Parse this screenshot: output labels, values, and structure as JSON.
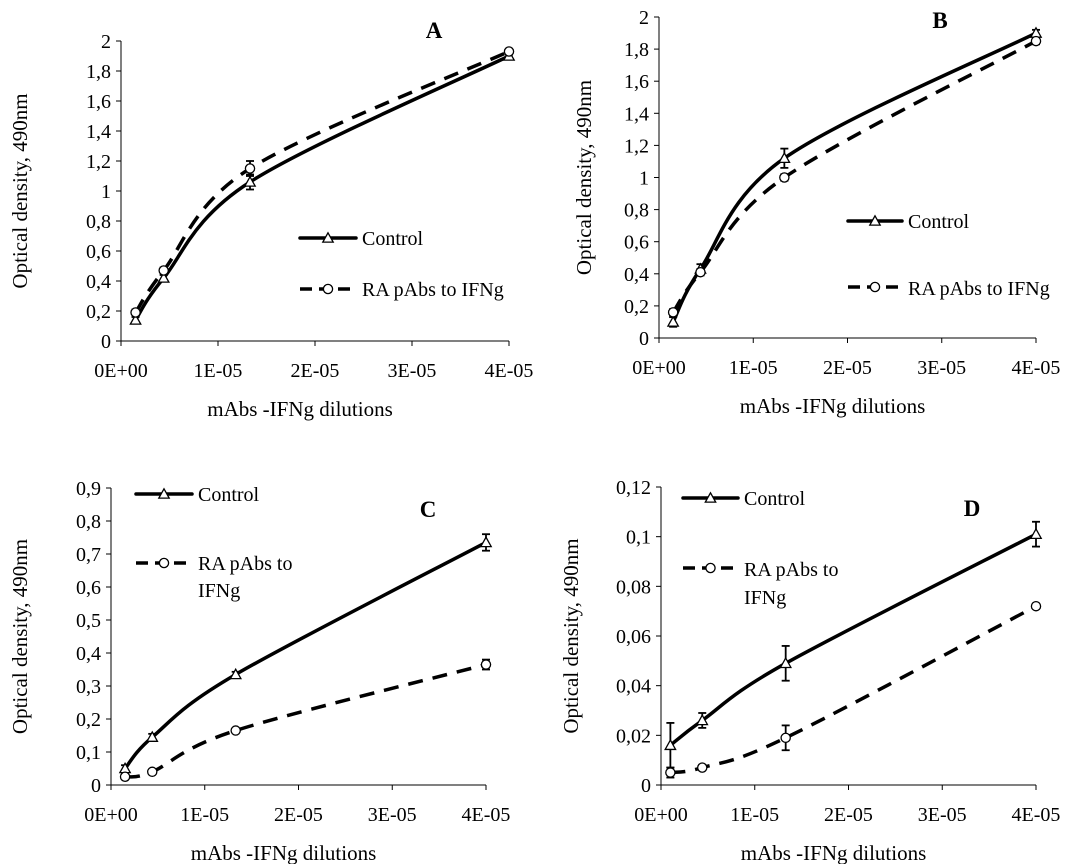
{
  "chart_data": [
    {
      "type": "line",
      "title": "A",
      "xlabel": "mAbs -IFNg dilutions",
      "ylabel": "Optical density, 490nm",
      "x_ticks": [
        "0E+00",
        "1E-05",
        "2E-05",
        "3E-05",
        "4E-05"
      ],
      "y_ticks": [
        "0",
        "0,2",
        "0,4",
        "0,6",
        "0,8",
        "1",
        "1,2",
        "1,4",
        "1,6",
        "1,8",
        "2"
      ],
      "xlim": [
        0,
        4e-05
      ],
      "ylim": [
        0,
        2
      ],
      "legend": "center-right",
      "grid": false,
      "series": [
        {
          "name": "Control",
          "style": "solid",
          "marker": "triangle",
          "x": [
            1.5e-06,
            4.4e-06,
            1.33e-05,
            4e-05
          ],
          "y": [
            0.14,
            0.42,
            1.06,
            1.9
          ],
          "err": [
            0.02,
            0.02,
            0.05,
            0.01
          ]
        },
        {
          "name": "RA pAbs to IFNg",
          "style": "dashed",
          "marker": "circle",
          "x": [
            1.5e-06,
            4.4e-06,
            1.33e-05,
            4e-05
          ],
          "y": [
            0.19,
            0.47,
            1.15,
            1.93
          ],
          "err": [
            0.02,
            0.02,
            0.05,
            0.01
          ]
        }
      ]
    },
    {
      "type": "line",
      "title": "B",
      "xlabel": "mAbs -IFNg dilutions",
      "ylabel": "Optical density, 490nm",
      "x_ticks": [
        "0E+00",
        "1E-05",
        "2E-05",
        "3E-05",
        "4E-05"
      ],
      "y_ticks": [
        "0",
        "0,2",
        "0,4",
        "0,6",
        "0,8",
        "1",
        "1,2",
        "1,4",
        "1,6",
        "1,8",
        "2"
      ],
      "xlim": [
        0,
        4e-05
      ],
      "ylim": [
        0,
        2
      ],
      "legend": "center-right",
      "grid": false,
      "series": [
        {
          "name": "Control",
          "style": "solid",
          "marker": "triangle",
          "x": [
            1.5e-06,
            4.4e-06,
            1.33e-05,
            4e-05
          ],
          "y": [
            0.1,
            0.43,
            1.12,
            1.9
          ],
          "err": [
            0.03,
            0.03,
            0.06,
            0.02
          ]
        },
        {
          "name": "RA pAbs to IFNg",
          "style": "dashed",
          "marker": "circle",
          "x": [
            1.5e-06,
            4.4e-06,
            1.33e-05,
            4e-05
          ],
          "y": [
            0.16,
            0.41,
            1.0,
            1.85
          ],
          "err": [
            0.02,
            0.02,
            0.02,
            0.02
          ]
        }
      ]
    },
    {
      "type": "line",
      "title": "C",
      "xlabel": "mAbs -IFNg dilutions",
      "ylabel": "Optical density, 490nm",
      "x_ticks": [
        "0E+00",
        "1E-05",
        "2E-05",
        "3E-05",
        "4E-05"
      ],
      "y_ticks": [
        "0",
        "0,1",
        "0,2",
        "0,3",
        "0,4",
        "0,5",
        "0,6",
        "0,7",
        "0,8",
        "0,9"
      ],
      "xlim": [
        0,
        4e-05
      ],
      "ylim": [
        0,
        0.9
      ],
      "legend": "top-left",
      "grid": false,
      "series": [
        {
          "name": "Control",
          "style": "solid",
          "marker": "triangle",
          "x": [
            1.5e-06,
            4.4e-06,
            1.33e-05,
            4e-05
          ],
          "y": [
            0.05,
            0.145,
            0.335,
            0.735
          ],
          "err": [
            0.01,
            0.01,
            0.008,
            0.025
          ]
        },
        {
          "name": "RA pAbs to IFNg",
          "style": "dashed",
          "marker": "circle",
          "x": [
            1.5e-06,
            4.4e-06,
            1.33e-05,
            4e-05
          ],
          "y": [
            0.025,
            0.04,
            0.165,
            0.365
          ],
          "err": [
            0.005,
            0.005,
            0.005,
            0.015
          ]
        }
      ]
    },
    {
      "type": "line",
      "title": "D",
      "xlabel": "mAbs -IFNg dilutions",
      "ylabel": "Optical density, 490nm",
      "x_ticks": [
        "0E+00",
        "1E-05",
        "2E-05",
        "3E-05",
        "4E-05"
      ],
      "y_ticks": [
        "0",
        "0,02",
        "0,04",
        "0,06",
        "0,08",
        "0,1",
        "0,12"
      ],
      "xlim": [
        0,
        4e-05
      ],
      "ylim": [
        0,
        0.12
      ],
      "legend": "top-left",
      "grid": false,
      "series": [
        {
          "name": "Control",
          "style": "solid",
          "marker": "triangle",
          "x": [
            1e-06,
            4.4e-06,
            1.33e-05,
            4e-05
          ],
          "y": [
            0.016,
            0.026,
            0.049,
            0.101
          ],
          "err": [
            0.009,
            0.003,
            0.007,
            0.005
          ]
        },
        {
          "name": "RA pAbs to IFNg",
          "style": "dashed",
          "marker": "circle",
          "x": [
            1e-06,
            4.4e-06,
            1.33e-05,
            4e-05
          ],
          "y": [
            0.005,
            0.007,
            0.019,
            0.072
          ],
          "err": [
            0.002,
            0.001,
            0.005,
            0.001
          ]
        }
      ]
    }
  ],
  "legend_labels": {
    "A": [
      "Control",
      "RA pAbs to IFNg"
    ],
    "B": [
      "Control",
      "RA pAbs to IFNg"
    ],
    "C": [
      "Control",
      "RA pAbs to",
      "IFNg"
    ],
    "D": [
      "Control",
      "RA pAbs to",
      "IFNg"
    ]
  }
}
